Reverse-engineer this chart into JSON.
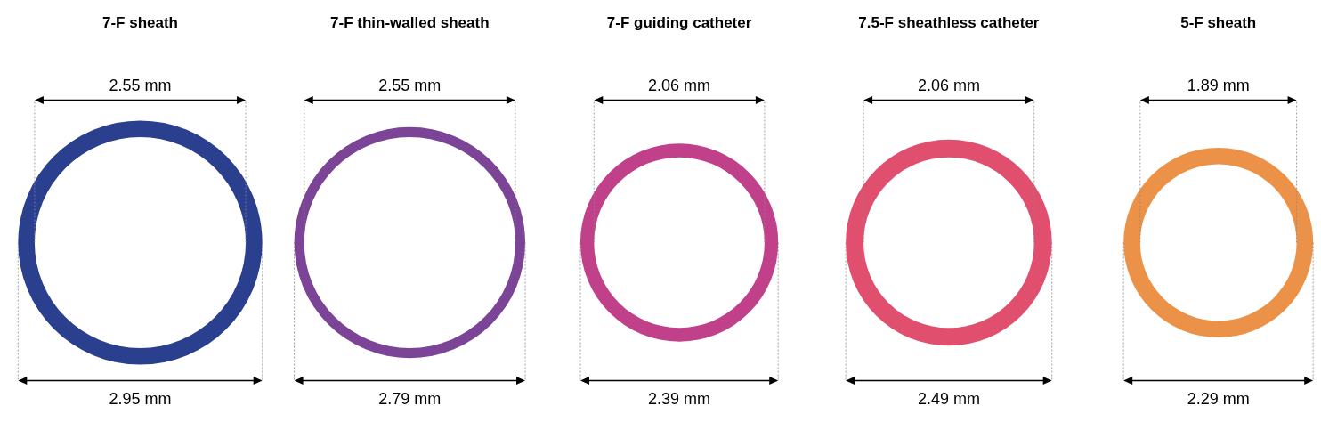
{
  "chart_data": {
    "type": "other",
    "categories": [
      "7-F sheath",
      "7-F thin-walled sheath",
      "7-F guiding catheter",
      "7.5-F sheathless catheter",
      "5-F sheath"
    ],
    "colors": [
      "#2b3f8f",
      "#7b4496",
      "#c0418a",
      "#e04f6e",
      "#ec9248"
    ],
    "series": [
      {
        "values": [
          2.55,
          2.55,
          2.06,
          2.06,
          1.89
        ],
        "value_labels": [
          "2.55 mm",
          "2.55 mm",
          "2.06 mm",
          "2.06 mm",
          "1.89 mm"
        ]
      },
      {
        "values": [
          2.95,
          2.79,
          2.39,
          2.49,
          2.29
        ],
        "value_labels": [
          "2.95 mm",
          "2.79 mm",
          "2.39 mm",
          "2.49 mm",
          "2.29 mm"
        ]
      }
    ]
  }
}
